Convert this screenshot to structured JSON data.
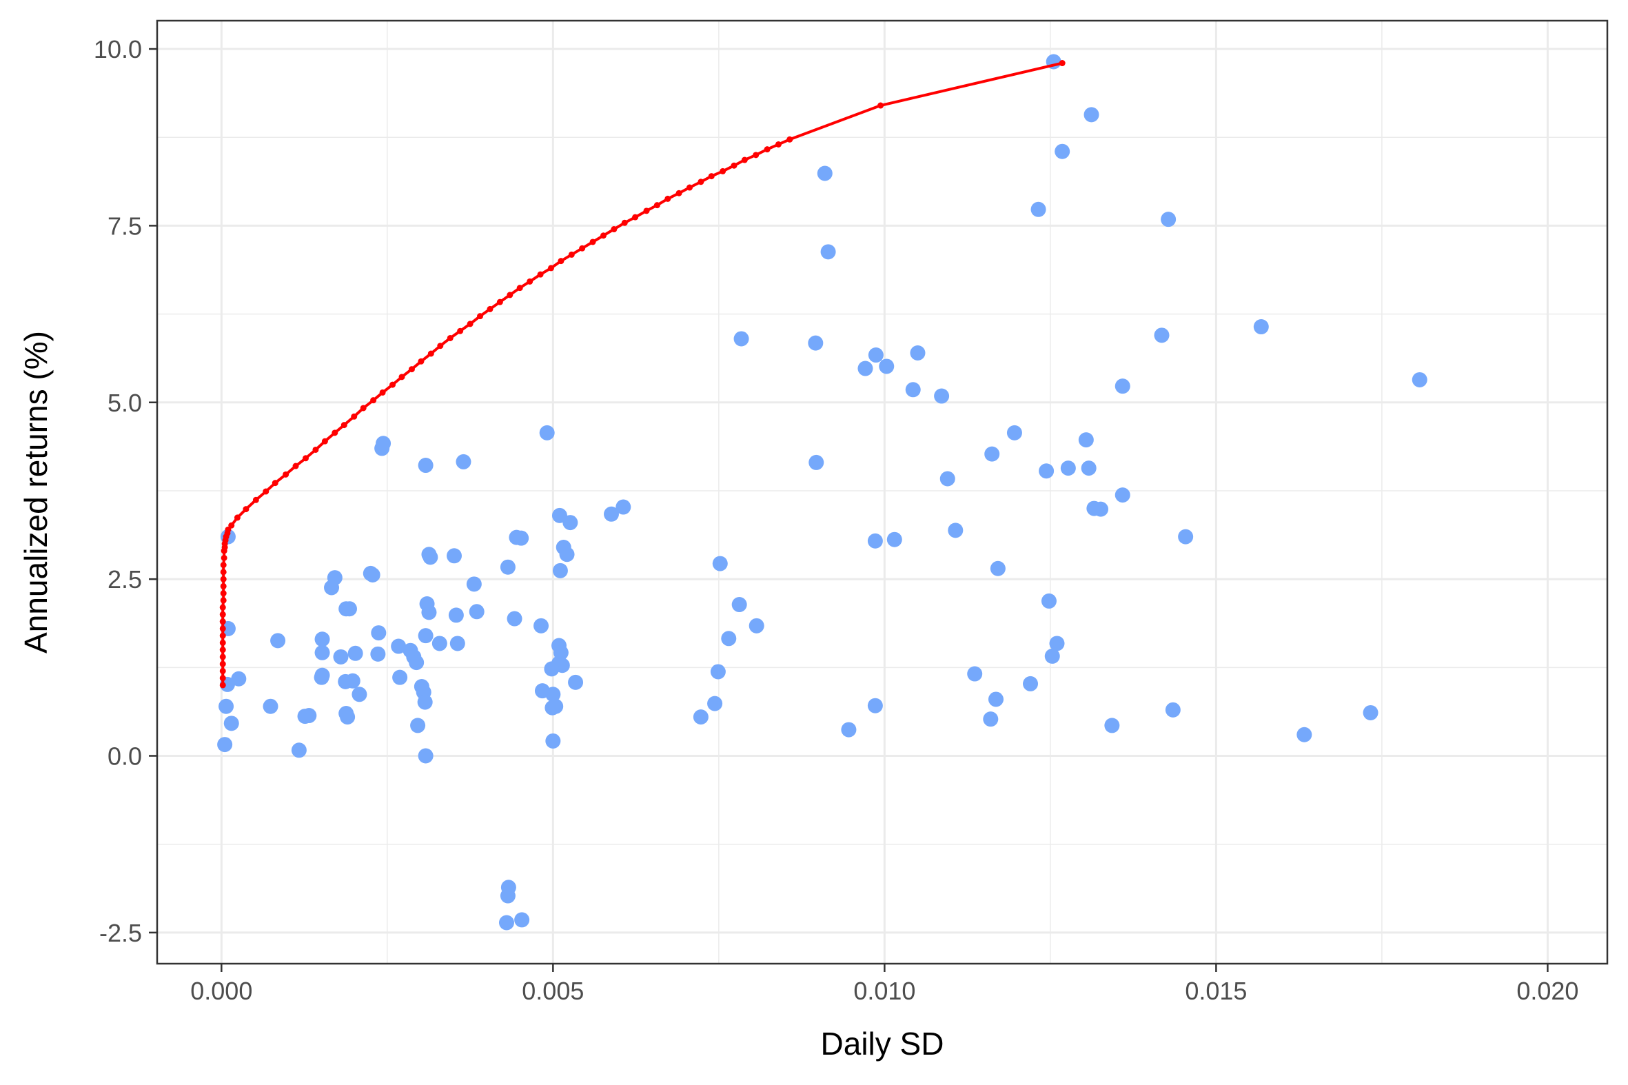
{
  "chart_data": {
    "type": "scatter",
    "title": "",
    "xlabel": "Daily SD",
    "ylabel": "Annualized returns (%)",
    "xlim": [
      -0.00097,
      0.0209
    ],
    "ylim": [
      -2.94,
      10.4
    ],
    "x_ticks": [
      0.0,
      0.005,
      0.01,
      0.015,
      0.02
    ],
    "x_tick_labels": [
      "0.000",
      "0.005",
      "0.010",
      "0.015",
      "0.020"
    ],
    "y_ticks": [
      -2.5,
      0.0,
      2.5,
      5.0,
      7.5,
      10.0
    ],
    "y_tick_labels": [
      "-2.5",
      "0.0",
      "2.5",
      "5.0",
      "7.5",
      "10.0"
    ],
    "grid": true,
    "colors": {
      "points": "#75A8FB",
      "frontier": "#FF0000",
      "panel_border": "#333333",
      "grid": "#EBEBEB"
    },
    "series": [
      {
        "kind": "points",
        "x": [
          0.01255,
          0.01312,
          0.01268,
          0.0091,
          0.00915,
          0.01232,
          0.01428,
          0.01568,
          0.00784,
          0.00896,
          0.01418,
          0.00987,
          0.00971,
          0.01003,
          0.0105,
          0.01807,
          0.01043,
          0.01086,
          0.01359,
          0.00491,
          0.01196,
          0.01304,
          0.00242,
          0.00244,
          0.01162,
          0.00365,
          0.00308,
          0.00897,
          0.01308,
          0.01277,
          0.01244,
          0.01095,
          0.01359,
          0.00606,
          0.01326,
          0.01316,
          0.0051,
          0.00588,
          0.00526,
          0.01454,
          0.0001,
          0.00445,
          0.00452,
          0.00986,
          0.01015,
          0.01107,
          0.00516,
          0.00521,
          0.00315,
          0.00313,
          0.00351,
          0.00511,
          0.00752,
          0.01171,
          0.00432,
          0.00171,
          0.00225,
          0.00228,
          0.00381,
          0.00166,
          0.0031,
          0.00313,
          0.00193,
          0.00188,
          0.00385,
          0.00354,
          0.00442,
          0.00781,
          0.01248,
          0.00807,
          0.0001,
          0.00482,
          0.00237,
          0.00085,
          0.00152,
          0.00152,
          0.00356,
          0.00329,
          0.00267,
          0.00285,
          0.00308,
          0.00765,
          0.0126,
          0.00509,
          0.00152,
          0.0018,
          0.00202,
          0.00236,
          0.00512,
          0.00509,
          0.01253,
          0.0029,
          0.00514,
          0.00294,
          0.00498,
          0.00151,
          0.00749,
          0.01136,
          0.00269,
          0.00026,
          0.00534,
          0.00198,
          0.0122,
          0.00187,
          0.00302,
          0.00208,
          9e-05,
          0.00305,
          0.00484,
          0.005,
          0.01168,
          0.00307,
          0.00744,
          0.00986,
          7e-05,
          0.00074,
          0.00132,
          0.00499,
          0.00504,
          0.01435,
          0.01733,
          0.0019,
          0.00188,
          0.00126,
          0.00723,
          0.0116,
          0.00015,
          0.00296,
          0.01343,
          0.00946,
          0.01633,
          0.005,
          5e-05,
          0.00117,
          0.00308,
          0.00433,
          0.00432,
          0.00453,
          0.0043
        ],
        "y": [
          9.82,
          9.07,
          8.55,
          8.24,
          7.13,
          7.73,
          7.59,
          6.07,
          5.9,
          5.84,
          5.95,
          5.67,
          5.48,
          5.51,
          5.7,
          5.32,
          5.18,
          5.09,
          5.23,
          4.57,
          4.57,
          4.47,
          4.35,
          4.42,
          4.27,
          4.16,
          4.11,
          4.15,
          4.07,
          4.07,
          4.03,
          3.92,
          3.69,
          3.52,
          3.49,
          3.5,
          3.4,
          3.42,
          3.3,
          3.1,
          3.1,
          3.09,
          3.08,
          3.04,
          3.06,
          3.19,
          2.95,
          2.85,
          2.81,
          2.85,
          2.83,
          2.62,
          2.72,
          2.65,
          2.67,
          2.52,
          2.58,
          2.56,
          2.43,
          2.38,
          2.15,
          2.03,
          2.08,
          2.08,
          2.04,
          1.99,
          1.94,
          2.14,
          2.19,
          1.84,
          1.8,
          1.84,
          1.74,
          1.63,
          1.65,
          1.46,
          1.59,
          1.59,
          1.55,
          1.49,
          1.7,
          1.66,
          1.59,
          1.56,
          1.14,
          1.4,
          1.45,
          1.44,
          1.46,
          1.31,
          1.41,
          1.4,
          1.28,
          1.32,
          1.23,
          1.11,
          1.19,
          1.16,
          1.11,
          1.09,
          1.04,
          1.06,
          1.02,
          1.05,
          0.98,
          0.87,
          1.01,
          0.9,
          0.92,
          0.87,
          0.8,
          0.76,
          0.74,
          0.71,
          0.7,
          0.7,
          0.57,
          0.68,
          0.7,
          0.65,
          0.61,
          0.55,
          0.6,
          0.56,
          0.55,
          0.52,
          0.46,
          0.43,
          0.43,
          0.37,
          0.3,
          0.21,
          0.16,
          0.08,
          0.0,
          -1.86,
          -1.98,
          -2.32,
          -2.36
        ]
      },
      {
        "kind": "frontier",
        "x": [
          2e-05,
          2e-05,
          2e-05,
          2e-05,
          2e-05,
          2e-05,
          2e-05,
          2e-05,
          2e-05,
          2e-05,
          2e-05,
          2e-05,
          3e-05,
          3e-05,
          3e-05,
          3e-05,
          3e-05,
          3e-05,
          4e-05,
          4e-05,
          5e-05,
          5e-05,
          6e-05,
          7e-05,
          9e-05,
          0.0001,
          0.00015,
          0.00024,
          0.00037,
          0.00052,
          0.00067,
          0.00081,
          0.00097,
          0.00112,
          0.00127,
          0.00142,
          0.00156,
          0.00171,
          0.00185,
          0.002,
          0.00214,
          0.00229,
          0.00243,
          0.00258,
          0.00272,
          0.00287,
          0.00301,
          0.00316,
          0.0033,
          0.00345,
          0.0036,
          0.00375,
          0.0039,
          0.00405,
          0.0042,
          0.00435,
          0.0045,
          0.00465,
          0.00481,
          0.00497,
          0.00512,
          0.00528,
          0.00544,
          0.0056,
          0.00576,
          0.00592,
          0.00608,
          0.00624,
          0.00641,
          0.00657,
          0.00673,
          0.0069,
          0.00706,
          0.00723,
          0.00739,
          0.00756,
          0.00773,
          0.00789,
          0.00806,
          0.00823,
          0.0084,
          0.00857,
          0.00994,
          0.01268
        ],
        "y": [
          1.0,
          1.1,
          1.2,
          1.3,
          1.4,
          1.5,
          1.6,
          1.7,
          1.8,
          1.9,
          2.0,
          2.1,
          2.2,
          2.3,
          2.4,
          2.5,
          2.6,
          2.7,
          2.8,
          2.9,
          2.95,
          3.0,
          3.05,
          3.1,
          3.15,
          3.2,
          3.26,
          3.37,
          3.49,
          3.62,
          3.74,
          3.86,
          3.98,
          4.1,
          4.21,
          4.33,
          4.45,
          4.57,
          4.68,
          4.8,
          4.92,
          5.03,
          5.14,
          5.25,
          5.36,
          5.47,
          5.58,
          5.69,
          5.8,
          5.91,
          6.01,
          6.11,
          6.22,
          6.32,
          6.42,
          6.52,
          6.62,
          6.71,
          6.81,
          6.9,
          7.0,
          7.09,
          7.18,
          7.27,
          7.36,
          7.45,
          7.54,
          7.62,
          7.71,
          7.79,
          7.88,
          7.96,
          8.04,
          8.12,
          8.2,
          8.27,
          8.35,
          8.43,
          8.5,
          8.58,
          8.65,
          8.72,
          9.2,
          9.8
        ]
      }
    ]
  }
}
